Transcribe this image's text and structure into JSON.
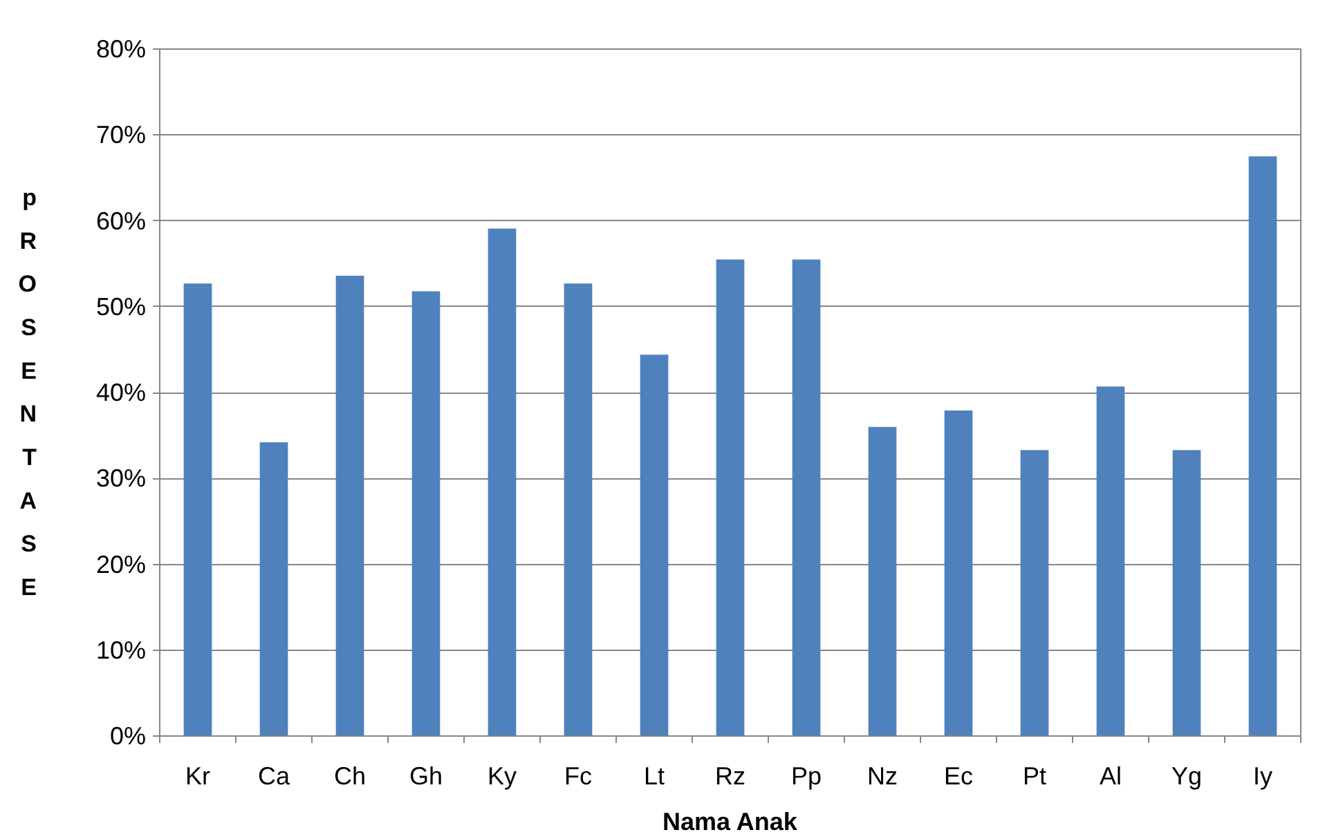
{
  "chart_data": {
    "type": "bar",
    "xlabel": "Nama Anak",
    "ylabel": "pROSENTASE",
    "categories": [
      "Kr",
      "Ca",
      "Ch",
      "Gh",
      "Ky",
      "Fc",
      "Lt",
      "Rz",
      "Pp",
      "Nz",
      "Ec",
      "Pt",
      "Al",
      "Yg",
      "Iy"
    ],
    "values": [
      52.7,
      34.2,
      53.6,
      51.8,
      59.1,
      52.7,
      44.4,
      55.5,
      55.5,
      36.0,
      37.9,
      33.3,
      40.7,
      33.3,
      67.5
    ],
    "color": "#4f81bd",
    "ylim": [
      0,
      80
    ],
    "yticks": [
      {
        "value": 0,
        "label": "0%"
      },
      {
        "value": 10,
        "label": "10%"
      },
      {
        "value": 20,
        "label": "20%"
      },
      {
        "value": 30,
        "label": "30%"
      },
      {
        "value": 40,
        "label": "40%"
      },
      {
        "value": 50,
        "label": "50%"
      },
      {
        "value": 60,
        "label": "60%"
      },
      {
        "value": 70,
        "label": "70%"
      },
      {
        "value": 80,
        "label": "80%"
      }
    ],
    "grid": "y"
  }
}
